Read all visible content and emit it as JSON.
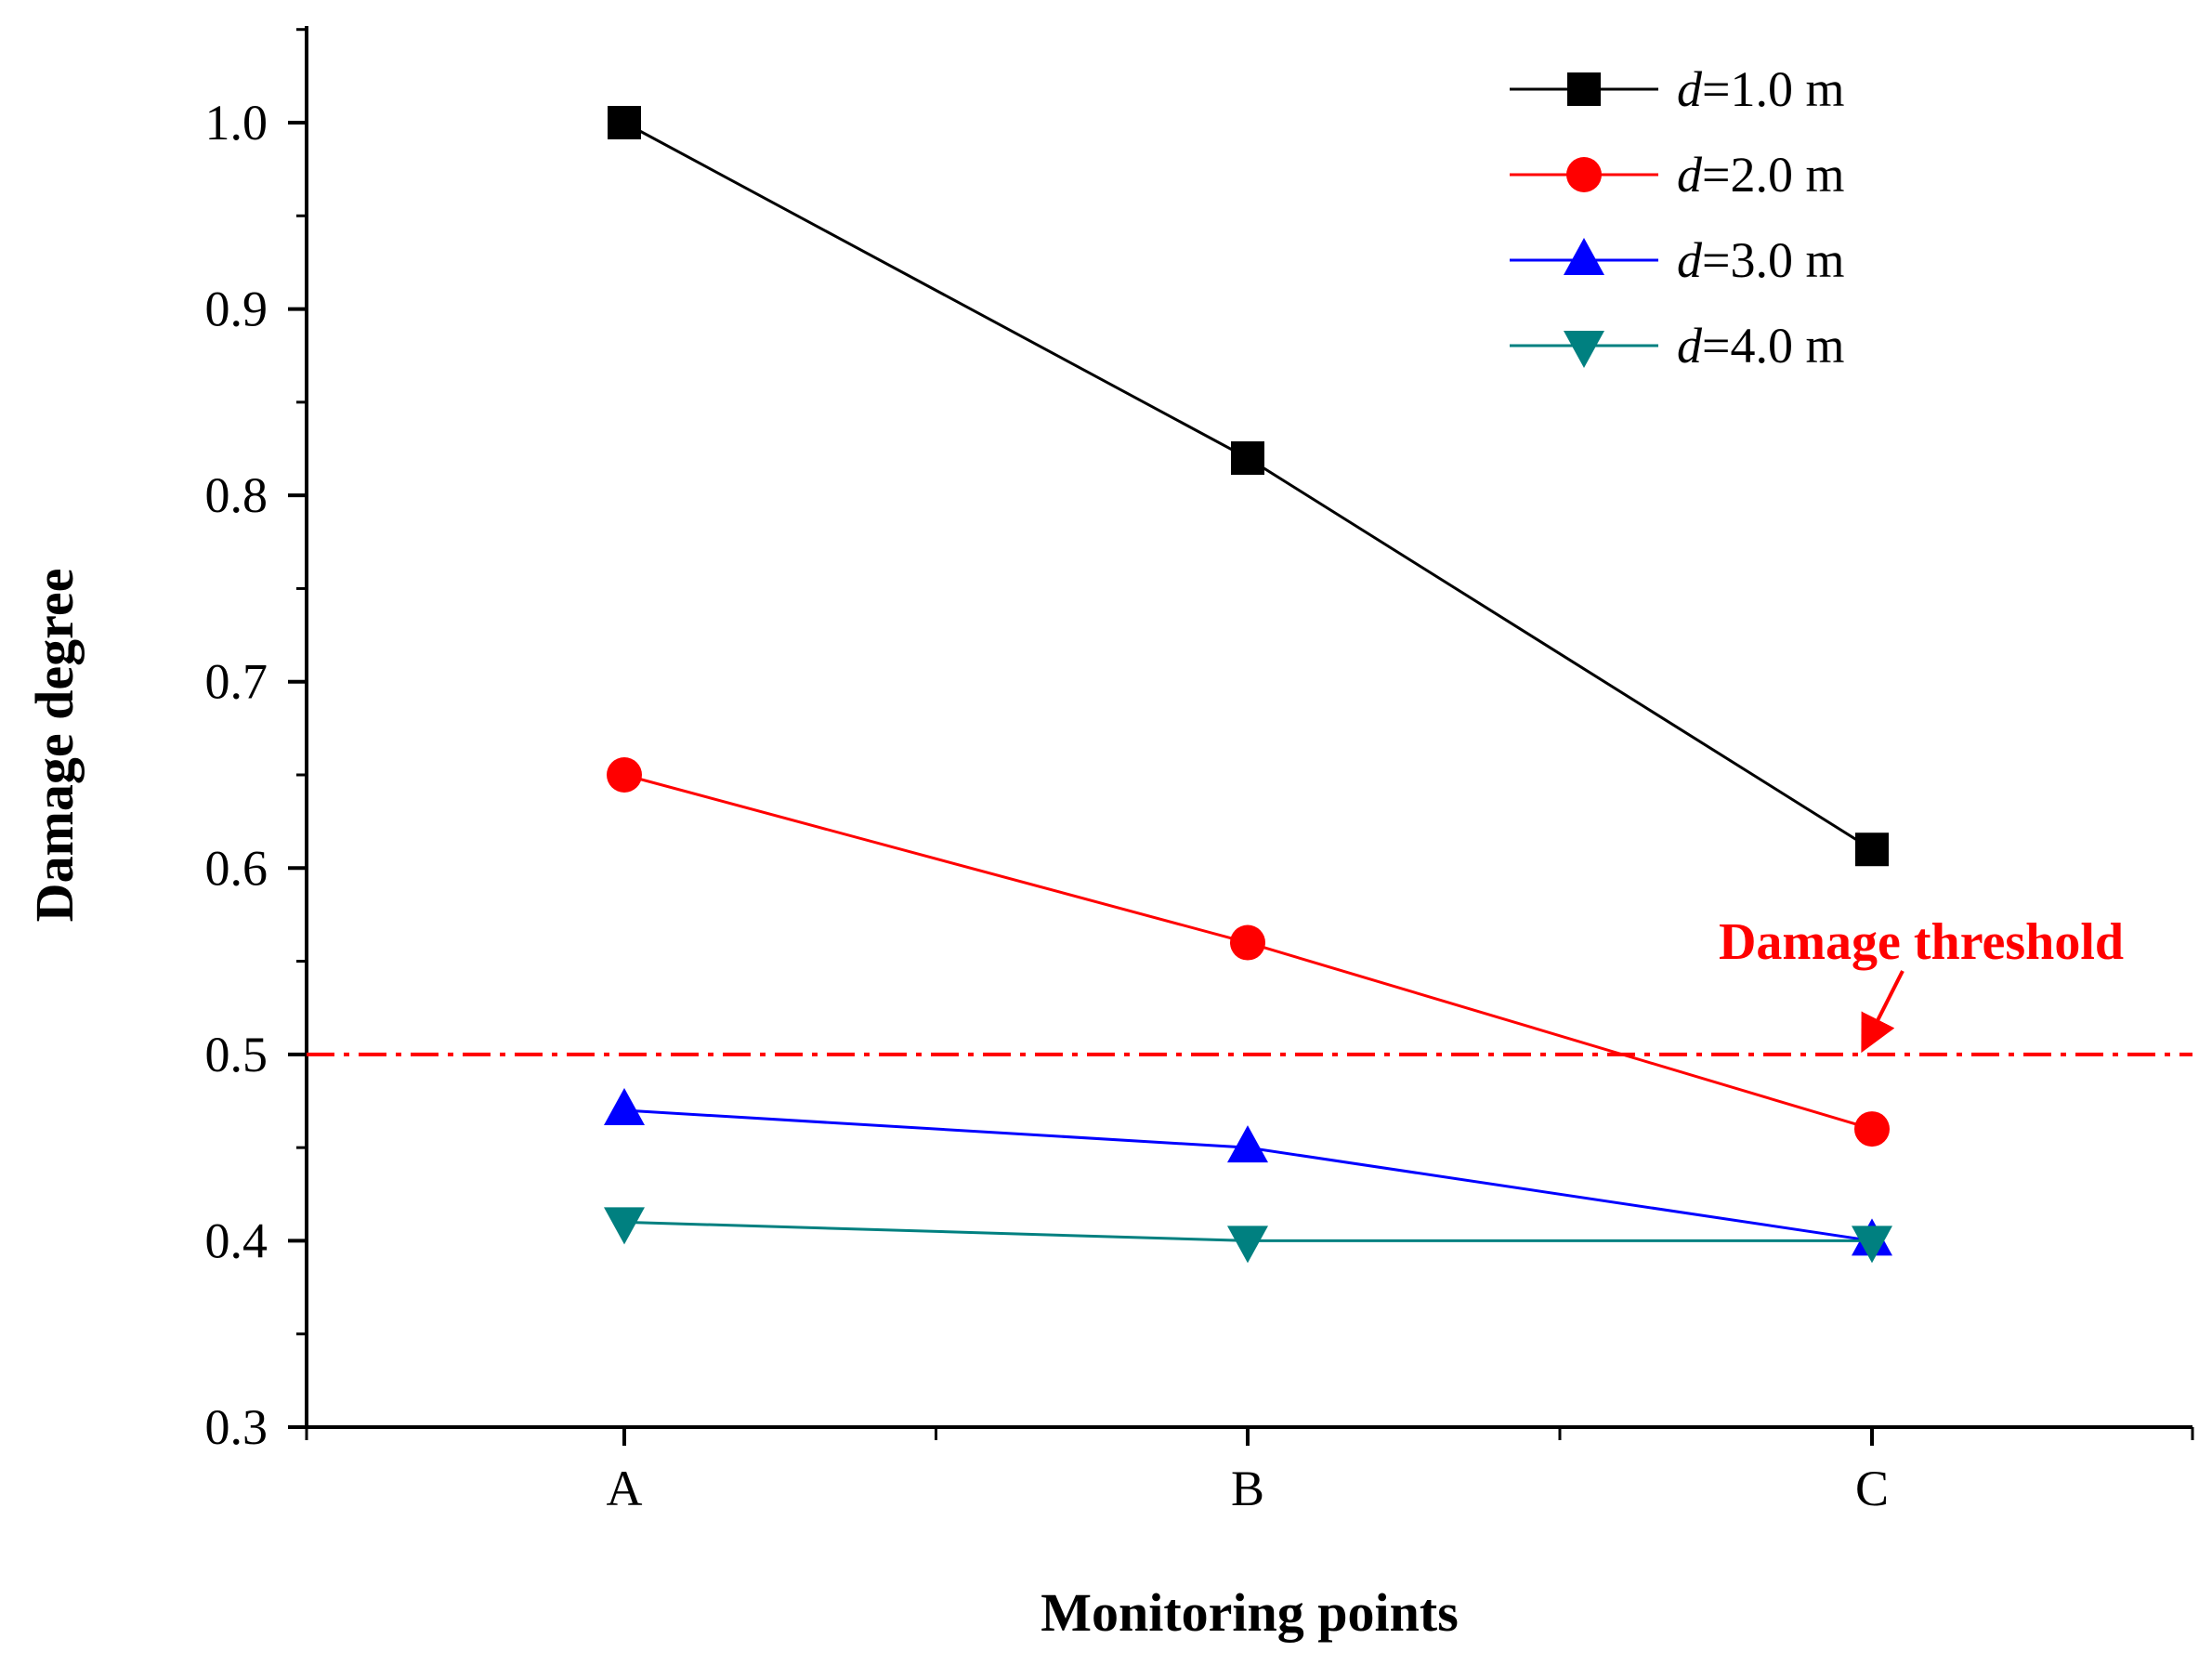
{
  "chart_data": {
    "type": "line",
    "title": "",
    "xlabel": "Monitoring points",
    "ylabel": "Damage degree",
    "categories": [
      "A",
      "B",
      "C"
    ],
    "ylim": [
      0.3,
      1.05
    ],
    "yticks": [
      0.3,
      0.4,
      0.5,
      0.6,
      0.7,
      0.8,
      0.9,
      1.0
    ],
    "ytick_labels": [
      "0.3",
      "0.4",
      "0.5",
      "0.6",
      "0.7",
      "0.8",
      "0.9",
      "1.0"
    ],
    "grid": false,
    "legend_position": "top-right",
    "series": [
      {
        "name": "d=1.0 m",
        "legend_var": "d",
        "legend_rest": "=1.0 m",
        "color": "#000000",
        "marker": "square",
        "values": [
          1.0,
          0.82,
          0.61
        ]
      },
      {
        "name": "d=2.0 m",
        "legend_var": "d",
        "legend_rest": "=2.0 m",
        "color": "#ff0000",
        "marker": "circle",
        "values": [
          0.65,
          0.56,
          0.46
        ]
      },
      {
        "name": "d=3.0 m",
        "legend_var": "d",
        "legend_rest": "=3.0 m",
        "color": "#0000ff",
        "marker": "triangle-up",
        "values": [
          0.47,
          0.45,
          0.4
        ]
      },
      {
        "name": "d=4.0 m",
        "legend_var": "d",
        "legend_rest": "=4.0 m",
        "color": "#008080",
        "marker": "triangle-down",
        "values": [
          0.41,
          0.4,
          0.4
        ]
      }
    ],
    "reference_line": {
      "value": 0.5,
      "color": "#ff0000",
      "style": "dash-dot"
    },
    "annotations": [
      {
        "text": "Damage threshold",
        "color": "#ff0000",
        "points_to": 0.5
      }
    ]
  }
}
